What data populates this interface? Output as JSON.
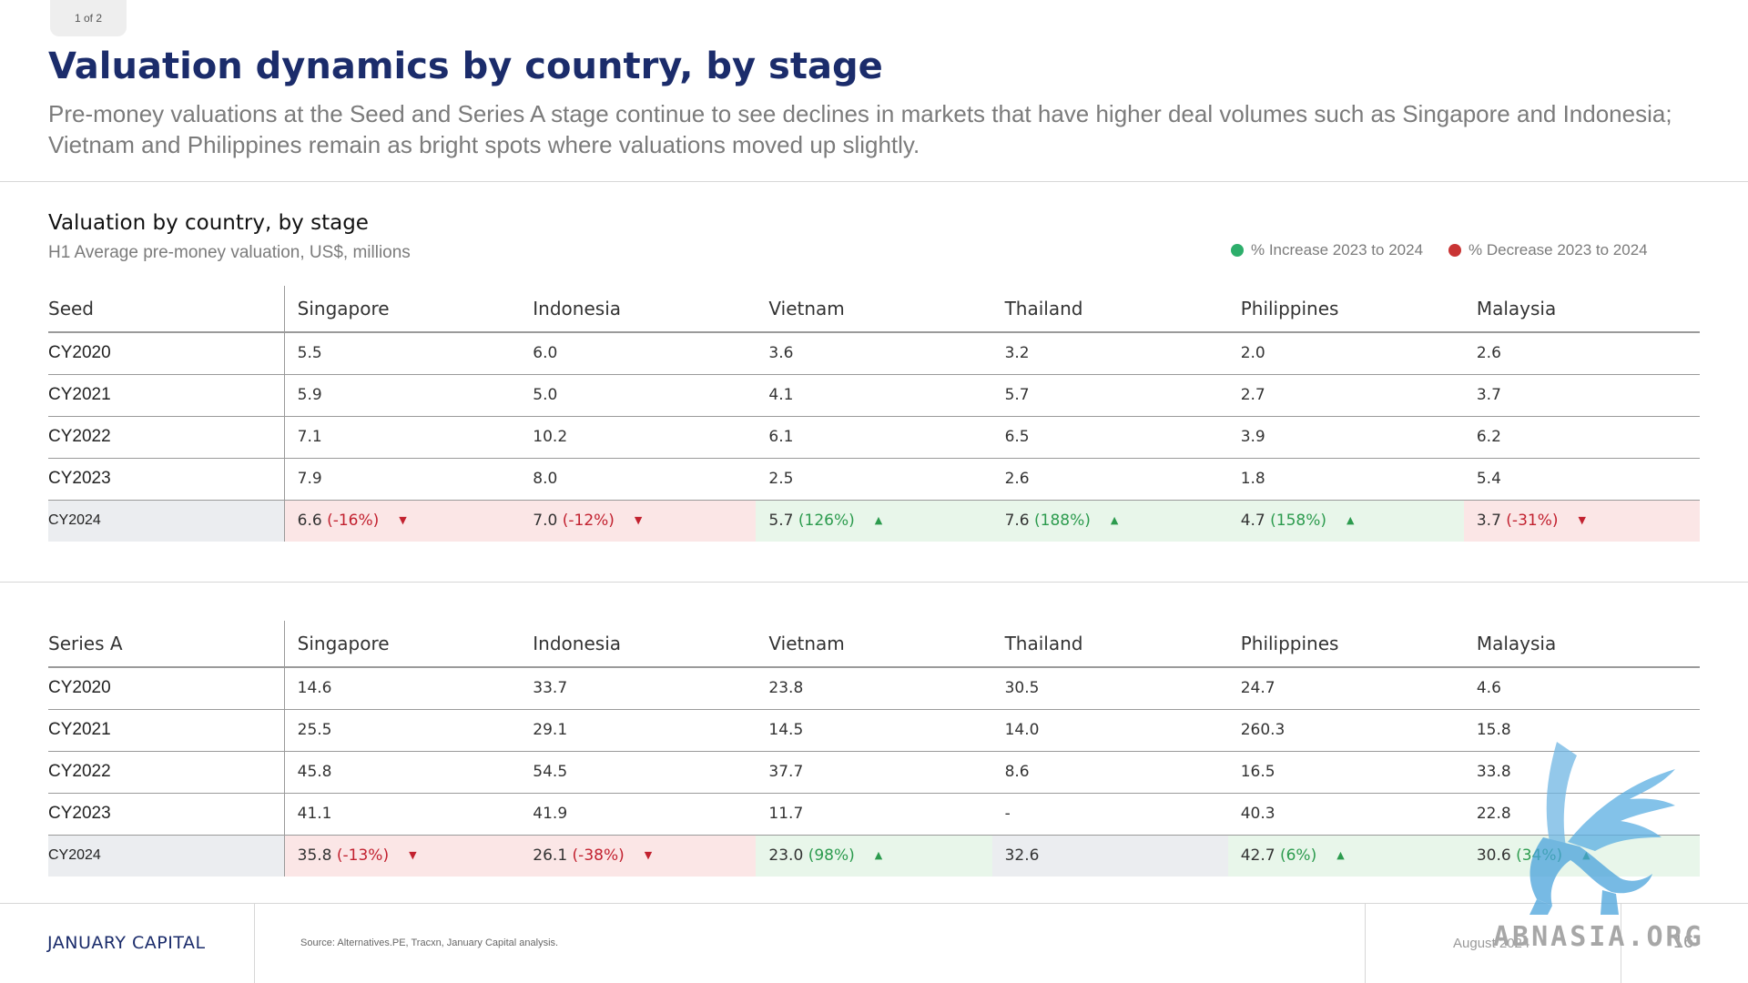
{
  "page_tab": "1 of 2",
  "title": "Valuation dynamics by country, by stage",
  "subtitle": "Pre-money valuations at the Seed and Series A stage continue to see declines in markets that have higher deal volumes such as Singapore and Indonesia; Vietnam and Philippines remain as bright spots where valuations moved up slightly.",
  "section": {
    "title": "Valuation by country, by stage",
    "subtitle": "H1 Average pre-money valuation, US$, millions"
  },
  "legend": {
    "increase": "% Increase 2023 to 2024",
    "decrease": "% Decrease 2023 to 2024",
    "increase_color": "#2dae6b",
    "decrease_color": "#c93434"
  },
  "seed": {
    "stage_label": "Seed",
    "columns": [
      "Singapore",
      "Indonesia",
      "Vietnam",
      "Thailand",
      "Philippines",
      "Malaysia"
    ],
    "rows": [
      {
        "year": "CY2020",
        "values": [
          "5.5",
          "6.0",
          "3.6",
          "3.2",
          "2.0",
          "2.6"
        ]
      },
      {
        "year": "CY2021",
        "values": [
          "5.9",
          "5.0",
          "4.1",
          "5.7",
          "2.7",
          "3.7"
        ]
      },
      {
        "year": "CY2022",
        "values": [
          "7.1",
          "10.2",
          "6.1",
          "6.5",
          "3.9",
          "6.2"
        ]
      },
      {
        "year": "CY2023",
        "values": [
          "7.9",
          "8.0",
          "2.5",
          "2.6",
          "1.8",
          "5.4"
        ]
      }
    ],
    "highlight": {
      "year": "CY2024",
      "cells": [
        {
          "value": "6.6",
          "change": "(-16%)",
          "direction": "down"
        },
        {
          "value": "7.0",
          "change": "(-12%)",
          "direction": "down"
        },
        {
          "value": "5.7",
          "change": "(126%)",
          "direction": "up"
        },
        {
          "value": "7.6",
          "change": "(188%)",
          "direction": "up"
        },
        {
          "value": "4.7",
          "change": "(158%)",
          "direction": "up"
        },
        {
          "value": "3.7",
          "change": "(-31%)",
          "direction": "down"
        }
      ]
    }
  },
  "series_a": {
    "stage_label": "Series A",
    "columns": [
      "Singapore",
      "Indonesia",
      "Vietnam",
      "Thailand",
      "Philippines",
      "Malaysia"
    ],
    "rows": [
      {
        "year": "CY2020",
        "values": [
          "14.6",
          "33.7",
          "23.8",
          "30.5",
          "24.7",
          "4.6"
        ]
      },
      {
        "year": "CY2021",
        "values": [
          "25.5",
          "29.1",
          "14.5",
          "14.0",
          "260.3",
          "15.8"
        ]
      },
      {
        "year": "CY2022",
        "values": [
          "45.8",
          "54.5",
          "37.7",
          "8.6",
          "16.5",
          "33.8"
        ]
      },
      {
        "year": "CY2023",
        "values": [
          "41.1",
          "41.9",
          "11.7",
          "-",
          "40.3",
          "22.8"
        ]
      }
    ],
    "highlight": {
      "year": "CY2024",
      "cells": [
        {
          "value": "35.8",
          "change": "(-13%)",
          "direction": "down"
        },
        {
          "value": "26.1",
          "change": "(-38%)",
          "direction": "down"
        },
        {
          "value": "23.0",
          "change": "(98%)",
          "direction": "up"
        },
        {
          "value": "32.6",
          "change": "",
          "direction": "neutral"
        },
        {
          "value": "42.7",
          "change": "(6%)",
          "direction": "up"
        },
        {
          "value": "30.6",
          "change": "(34%)",
          "direction": "up"
        }
      ]
    }
  },
  "footer": {
    "brand": "JANUARY CAPITAL",
    "source": "Source: Alternatives.PE, Tracxn, January Capital analysis.",
    "date": "August 2024",
    "page_number": "16"
  },
  "watermark": {
    "text": "ABNASIA.ORG",
    "icon": "griffin-logo-icon"
  }
}
